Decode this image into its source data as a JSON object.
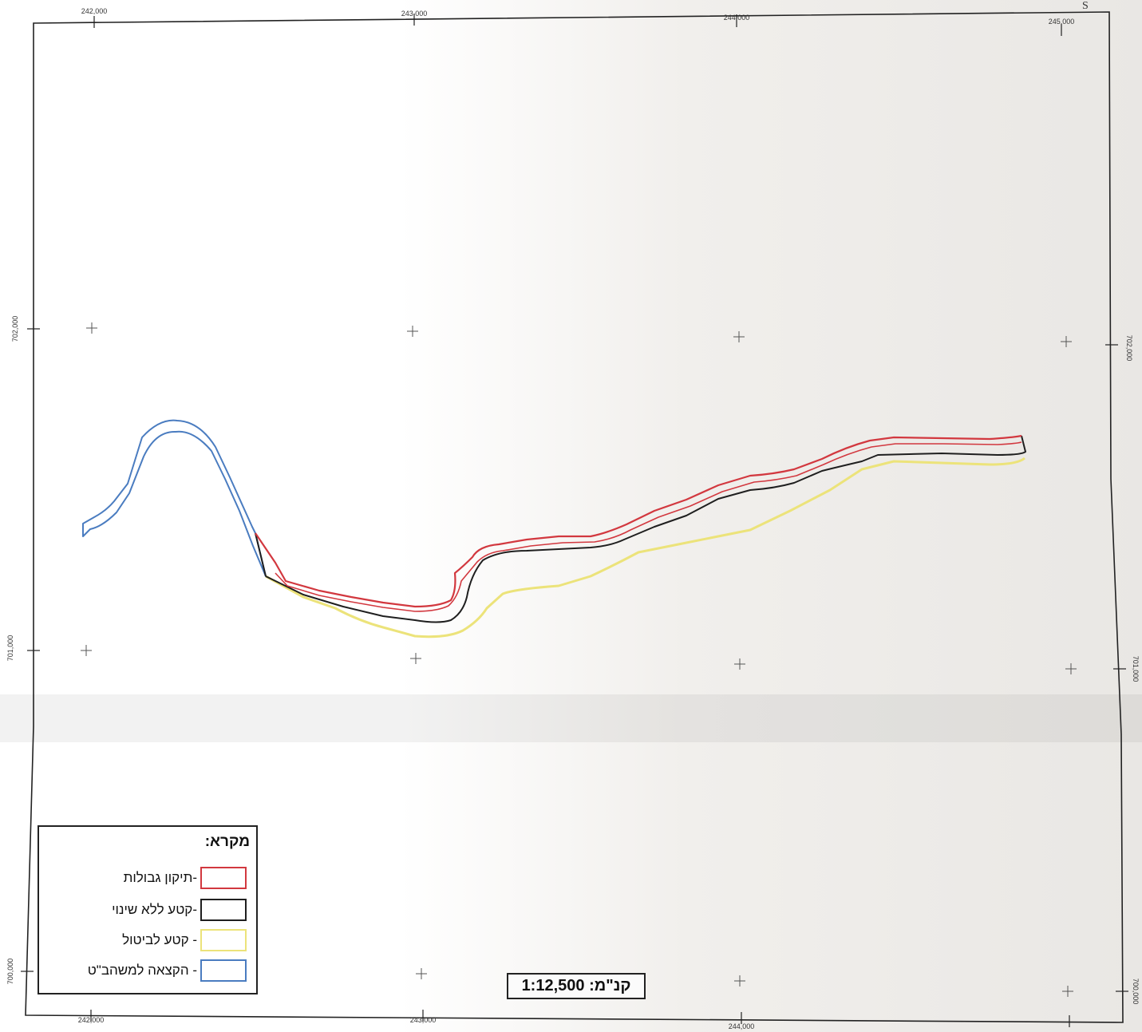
{
  "map": {
    "grid_labels": {
      "top": [
        "242,000",
        "243,000",
        "244,000",
        "245,000"
      ],
      "bottom": [
        "242,000",
        "243,000",
        "244,000"
      ],
      "left": [
        "702,000",
        "701,000",
        "700,000"
      ],
      "right": [
        "702,000",
        "701,000",
        "700,000"
      ]
    },
    "corner_mark": "S",
    "scale_text": "קנ\"מ: 1:12,500",
    "colors": {
      "boundary_correction": "#d2383f",
      "unchanged_segment": "#1f1f1f",
      "cancellation_segment": "#ece37a",
      "allocation": "#4a7cc0"
    }
  },
  "legend": {
    "title": "מקרא:",
    "items": [
      {
        "label": "-תיקון גבולות",
        "color": "#d2383f"
      },
      {
        "label": "-קטע ללא שינוי",
        "color": "#1f1f1f"
      },
      {
        "label": "- קטע לביטול",
        "color": "#ece37a"
      },
      {
        "label": "- הקצאה למשהב\"ט",
        "color": "#4a7cc0"
      }
    ]
  }
}
